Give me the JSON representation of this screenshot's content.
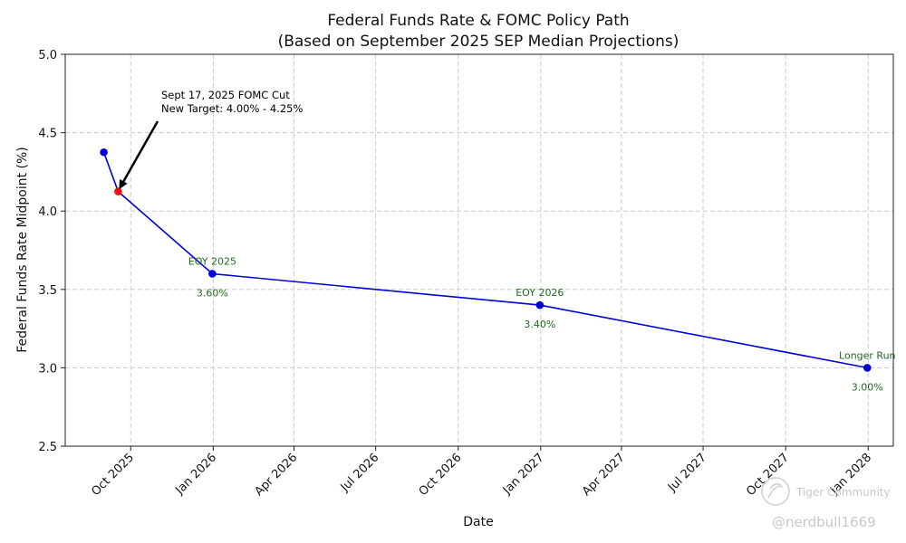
{
  "chart_data": {
    "type": "line",
    "title": "Federal Funds Rate & FOMC Policy Path",
    "subtitle": "(Based on September 2025 SEP Median Projections)",
    "xlabel": "Date",
    "ylabel": "Federal Funds Rate Midpoint (%)",
    "ylim": [
      2.5,
      5.0
    ],
    "yticks": [
      "2.5",
      "3.0",
      "3.5",
      "4.0",
      "4.5",
      "5.0"
    ],
    "xticks": [
      {
        "label": "Oct 2025",
        "t": 0
      },
      {
        "label": "Jan 2026",
        "t": 92
      },
      {
        "label": "Apr 2026",
        "t": 182
      },
      {
        "label": "Jul 2026",
        "t": 273
      },
      {
        "label": "Oct 2026",
        "t": 365
      },
      {
        "label": "Jan 2027",
        "t": 457
      },
      {
        "label": "Apr 2027",
        "t": 547
      },
      {
        "label": "Jul 2027",
        "t": 638
      },
      {
        "label": "Oct 2027",
        "t": 730
      },
      {
        "label": "Jan 2028",
        "t": 822
      }
    ],
    "x_range_days": [
      -73,
      850
    ],
    "series": [
      {
        "name": "Policy path",
        "color": "#0000dd",
        "points": [
          {
            "date": "2025-09-01",
            "t": -30,
            "y": 4.375,
            "color": "#0000dd"
          },
          {
            "date": "2025-09-17",
            "t": -14,
            "y": 4.125,
            "color": "#ee1111"
          },
          {
            "date": "2025-12-31",
            "t": 91,
            "y": 3.6,
            "color": "#0000dd"
          },
          {
            "date": "2026-12-31",
            "t": 456,
            "y": 3.4,
            "color": "#0000dd"
          },
          {
            "date": "2027-12-31",
            "t": 821,
            "y": 3.0,
            "color": "#0000dd"
          }
        ]
      }
    ],
    "point_labels": [
      {
        "point": 2,
        "label": "EOY 2025",
        "value_text": "3.60%"
      },
      {
        "point": 3,
        "label": "EOY 2026",
        "value_text": "3.40%"
      },
      {
        "point": 4,
        "label": "Longer Run",
        "value_text": "3.00%"
      }
    ],
    "annotation": {
      "lines": [
        "Sept 17, 2025 FOMC Cut",
        "New Target: 4.00% - 4.25%"
      ],
      "points_to": 1
    },
    "grid": true
  },
  "watermark": {
    "brand": "Tiger Community",
    "handle": "@nerdbull1669"
  }
}
